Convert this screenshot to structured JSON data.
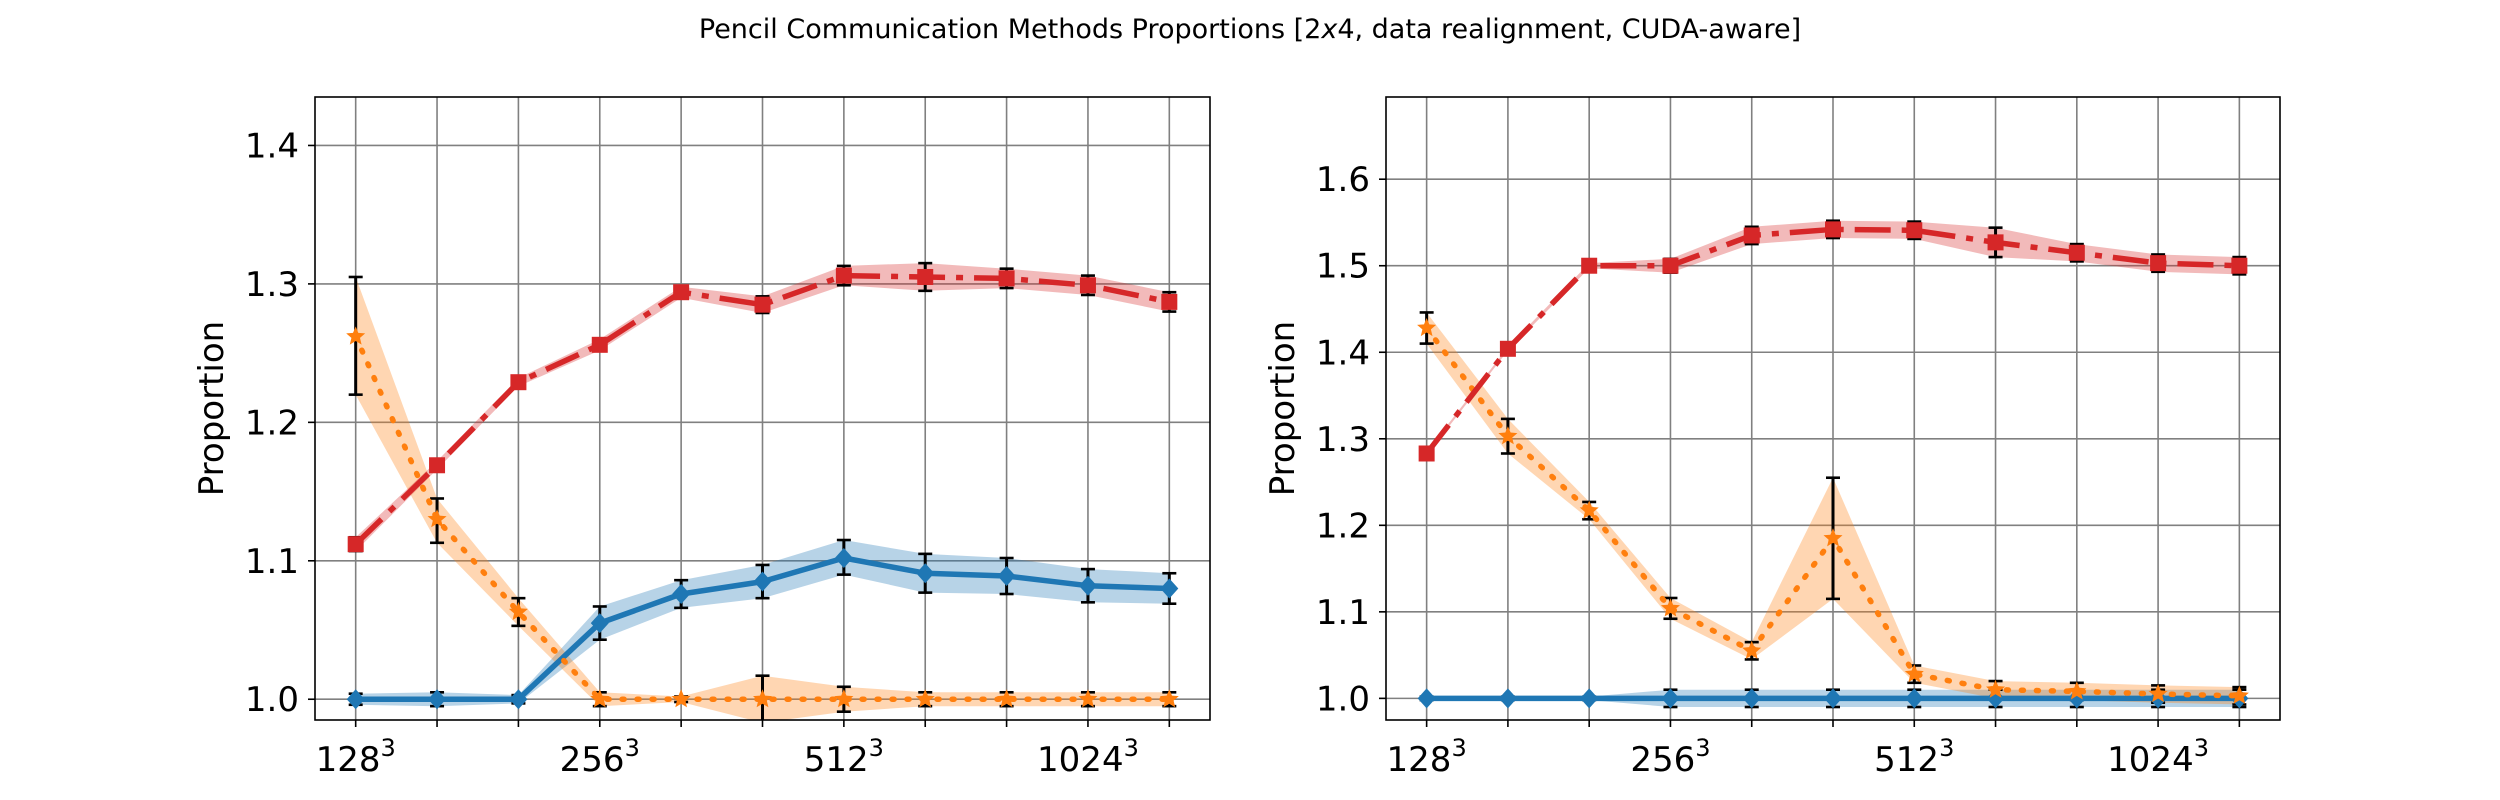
{
  "figure": {
    "title": "Pencil Communication Methods Proportions [2x4, data realignment, CUDA-aware]",
    "title_parts": [
      "Pencil Communication Methods Proportions [2",
      "x",
      "4, data realignment, CUDA-aware]"
    ]
  },
  "chart_data": [
    {
      "type": "line",
      "title": "",
      "xlabel": "",
      "ylabel": "Proportion",
      "grid": true,
      "legend": "none",
      "x_index": [
        0,
        1,
        2,
        3,
        4,
        5,
        6,
        7,
        8,
        9,
        10
      ],
      "xticks": [
        {
          "index": 0,
          "base": "128",
          "exp": "3"
        },
        {
          "index": 3,
          "base": "256",
          "exp": "3"
        },
        {
          "index": 6,
          "base": "512",
          "exp": "3"
        },
        {
          "index": 9,
          "base": "1024",
          "exp": "3"
        }
      ],
      "ylim": [
        0.985,
        1.435
      ],
      "yticks": [
        "1.0",
        "1.1",
        "1.2",
        "1.3",
        "1.4"
      ],
      "series": [
        {
          "color": "#1f77b4",
          "line_style": "solid",
          "marker": "diamond",
          "values": [
            1.0,
            1.0,
            1.0,
            1.055,
            1.076,
            1.085,
            1.102,
            1.091,
            1.089,
            1.082,
            1.08
          ],
          "lower": [
            0.996,
            0.995,
            0.997,
            1.043,
            1.066,
            1.073,
            1.09,
            1.077,
            1.076,
            1.07,
            1.069
          ],
          "upper": [
            1.004,
            1.005,
            1.003,
            1.067,
            1.086,
            1.097,
            1.115,
            1.105,
            1.102,
            1.094,
            1.091
          ]
        },
        {
          "color": "#ff7f0e",
          "line_style": "dotted",
          "marker": "star",
          "values": [
            1.262,
            1.13,
            1.063,
            1.0,
            1.0,
            1.0,
            1.0,
            1.0,
            1.0,
            1.0,
            1.0
          ],
          "lower": [
            1.22,
            1.113,
            1.053,
            0.995,
            0.998,
            0.983,
            0.991,
            0.995,
            0.995,
            0.995,
            0.995
          ],
          "upper": [
            1.305,
            1.145,
            1.073,
            1.005,
            1.002,
            1.017,
            1.009,
            1.005,
            1.005,
            1.005,
            1.005
          ]
        },
        {
          "color": "#d62728",
          "line_style": "dashdot",
          "marker": "square",
          "values": [
            1.112,
            1.169,
            1.229,
            1.256,
            1.294,
            1.285,
            1.306,
            1.305,
            1.304,
            1.299,
            1.287
          ],
          "lower": [
            1.107,
            1.166,
            1.226,
            1.252,
            1.29,
            1.279,
            1.299,
            1.295,
            1.297,
            1.292,
            1.28
          ],
          "upper": [
            1.117,
            1.172,
            1.232,
            1.26,
            1.298,
            1.291,
            1.313,
            1.315,
            1.311,
            1.306,
            1.294
          ]
        }
      ]
    },
    {
      "type": "line",
      "title": "",
      "xlabel": "",
      "ylabel": "Proportion",
      "grid": true,
      "legend": "none",
      "x_index": [
        0,
        1,
        2,
        3,
        4,
        5,
        6,
        7,
        8,
        9,
        10
      ],
      "xticks": [
        {
          "index": 0,
          "base": "128",
          "exp": "3"
        },
        {
          "index": 3,
          "base": "256",
          "exp": "3"
        },
        {
          "index": 6,
          "base": "512",
          "exp": "3"
        },
        {
          "index": 9,
          "base": "1024",
          "exp": "3"
        }
      ],
      "ylim": [
        0.975,
        1.695
      ],
      "yticks": [
        "1.0",
        "1.1",
        "1.2",
        "1.3",
        "1.4",
        "1.5",
        "1.6"
      ],
      "series": [
        {
          "color": "#1f77b4",
          "line_style": "solid",
          "marker": "diamond",
          "values": [
            1.0,
            1.0,
            1.0,
            1.0,
            1.0,
            1.0,
            1.0,
            1.0,
            1.0,
            1.0,
            1.0
          ],
          "lower": [
            0.998,
            0.998,
            0.998,
            0.99,
            0.99,
            0.99,
            0.99,
            0.99,
            0.99,
            0.99,
            0.99
          ],
          "upper": [
            1.002,
            1.002,
            1.002,
            1.01,
            1.01,
            1.01,
            1.01,
            1.01,
            1.01,
            1.01,
            1.01
          ]
        },
        {
          "color": "#ff7f0e",
          "line_style": "dotted",
          "marker": "star",
          "values": [
            1.428,
            1.303,
            1.217,
            1.104,
            1.055,
            1.185,
            1.028,
            1.01,
            1.008,
            1.005,
            1.003
          ],
          "lower": [
            1.41,
            1.283,
            1.207,
            1.092,
            1.045,
            1.115,
            1.018,
            1.0,
            0.998,
            0.995,
            0.993
          ],
          "upper": [
            1.446,
            1.323,
            1.227,
            1.116,
            1.065,
            1.255,
            1.038,
            1.02,
            1.018,
            1.015,
            1.013
          ]
        },
        {
          "color": "#d62728",
          "line_style": "dashdot",
          "marker": "square",
          "values": [
            1.283,
            1.404,
            1.5,
            1.5,
            1.535,
            1.542,
            1.541,
            1.527,
            1.515,
            1.503,
            1.5
          ],
          "lower": [
            1.281,
            1.402,
            1.497,
            1.492,
            1.525,
            1.532,
            1.531,
            1.51,
            1.505,
            1.493,
            1.49
          ],
          "upper": [
            1.285,
            1.406,
            1.503,
            1.508,
            1.545,
            1.552,
            1.551,
            1.544,
            1.525,
            1.513,
            1.51
          ]
        }
      ]
    }
  ]
}
